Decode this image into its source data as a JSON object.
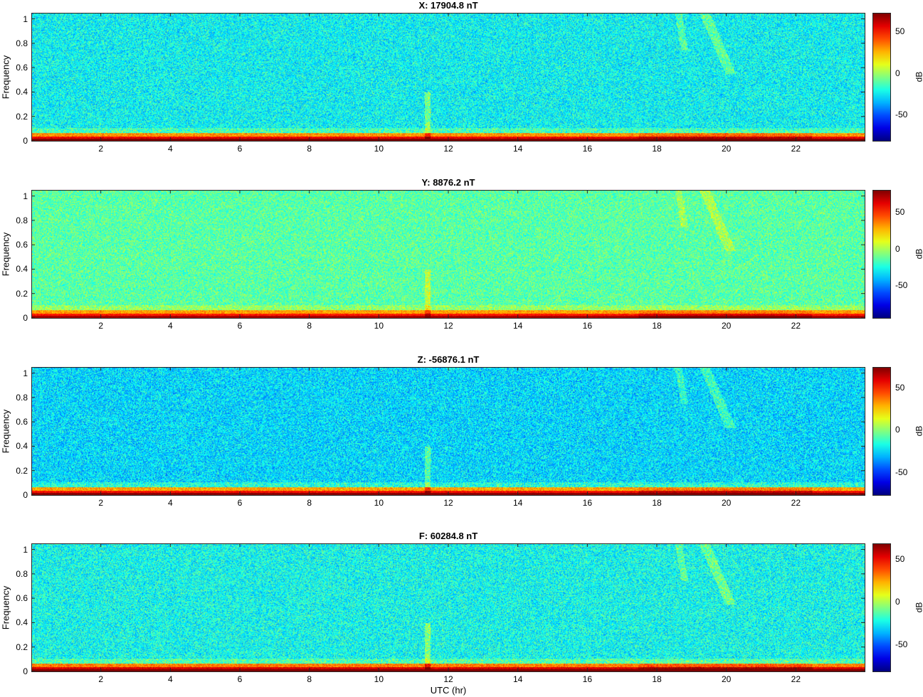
{
  "chart_data": [
    {
      "type": "heatmap",
      "title": "X: 17904.8 nT",
      "ylabel": "Frequency",
      "xlim": [
        0,
        24
      ],
      "ylim": [
        0,
        1.05
      ],
      "xticks": [
        2,
        4,
        6,
        8,
        10,
        12,
        14,
        16,
        18,
        20,
        22
      ],
      "yticks": [
        0,
        0.2,
        0.4,
        0.6,
        0.8,
        1
      ],
      "colorbar": {
        "label": "dB",
        "ticks": [
          50,
          0,
          -50
        ],
        "range": [
          -82,
          72
        ]
      },
      "colormap": "jet"
    },
    {
      "type": "heatmap",
      "title": "Y: 8876.2 nT",
      "ylabel": "Frequency",
      "xlim": [
        0,
        24
      ],
      "ylim": [
        0,
        1.05
      ],
      "xticks": [
        2,
        4,
        6,
        8,
        10,
        12,
        14,
        16,
        18,
        20,
        22
      ],
      "yticks": [
        0,
        0.2,
        0.4,
        0.6,
        0.8,
        1
      ],
      "colorbar": {
        "label": "dB",
        "ticks": [
          50,
          0,
          -50
        ],
        "range": [
          -95,
          80
        ]
      },
      "colormap": "jet"
    },
    {
      "type": "heatmap",
      "title": "Z: -56876.1 nT",
      "ylabel": "Frequency",
      "xlim": [
        0,
        24
      ],
      "ylim": [
        0,
        1.05
      ],
      "xticks": [
        2,
        4,
        6,
        8,
        10,
        12,
        14,
        16,
        18,
        20,
        22
      ],
      "yticks": [
        0,
        0.2,
        0.4,
        0.6,
        0.8,
        1
      ],
      "colorbar": {
        "label": "dB",
        "ticks": [
          50,
          0,
          -50
        ],
        "range": [
          -78,
          74
        ]
      },
      "colormap": "jet"
    },
    {
      "type": "heatmap",
      "title": "F: 60284.8 nT",
      "ylabel": "Frequency",
      "xlim": [
        0,
        24
      ],
      "ylim": [
        0,
        1.05
      ],
      "xticks": [
        2,
        4,
        6,
        8,
        10,
        12,
        14,
        16,
        18,
        20,
        22
      ],
      "yticks": [
        0,
        0.2,
        0.4,
        0.6,
        0.8,
        1
      ],
      "colorbar": {
        "label": "dB",
        "ticks": [
          50,
          0,
          -50
        ],
        "range": [
          -82,
          68
        ]
      },
      "colormap": "jet"
    }
  ],
  "xlabel": "UTC (hr)"
}
